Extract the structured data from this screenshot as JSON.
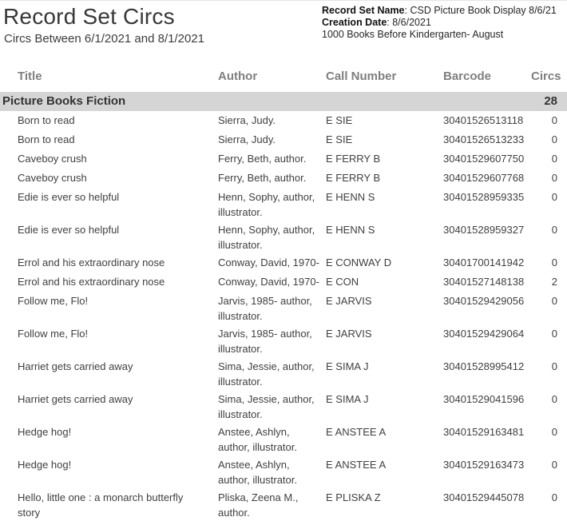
{
  "report": {
    "title": "Record Set Circs",
    "subtitle": "Circs Between 6/1/2021 and 8/1/2021"
  },
  "info": {
    "record_set": {
      "label": "Record Set Name",
      "sep": ": ",
      "value": "CSD Picture Book Display 8/6/21"
    },
    "creation_date": {
      "label": "Creation Date",
      "sep": ": ",
      "value": "8/6/2021"
    },
    "note": "1000 Books Before Kindergarten- August"
  },
  "table": {
    "columns": [
      "Title",
      "Author",
      "Call Number",
      "Barcode",
      "Circs"
    ],
    "section": {
      "title": "Picture Books Fiction",
      "circs": "28"
    },
    "rows": [
      {
        "title": "Born to read",
        "author": "Sierra, Judy.",
        "call_number": "E SIE",
        "barcode": "30401526513118",
        "circs": "0"
      },
      {
        "title": "Born to read",
        "author": "Sierra, Judy.",
        "call_number": "E SIE",
        "barcode": "30401526513233",
        "circs": "0"
      },
      {
        "title": "Caveboy crush",
        "author": "Ferry, Beth, author.",
        "call_number": "E FERRY B",
        "barcode": "30401529607750",
        "circs": "0"
      },
      {
        "title": "Caveboy crush",
        "author": "Ferry, Beth, author.",
        "call_number": "E FERRY B",
        "barcode": "30401529607768",
        "circs": "0"
      },
      {
        "title": "Edie is ever so helpful",
        "author": "Henn, Sophy, author, illustrator.",
        "call_number": "E HENN S",
        "barcode": "30401528959335",
        "circs": "0"
      },
      {
        "title": "Edie is ever so helpful",
        "author": "Henn, Sophy, author, illustrator.",
        "call_number": "E HENN S",
        "barcode": "30401528959327",
        "circs": "0"
      },
      {
        "title": "Errol and his extraordinary nose",
        "author": "Conway, David, 1970-",
        "call_number": "E CONWAY D",
        "barcode": "30401700141942",
        "circs": "0"
      },
      {
        "title": "Errol and his extraordinary nose",
        "author": "Conway, David, 1970-",
        "call_number": "E CON",
        "barcode": "30401527148138",
        "circs": "2"
      },
      {
        "title": "Follow me, Flo!",
        "author": "Jarvis, 1985- author, illustrator.",
        "call_number": "E JARVIS",
        "barcode": "30401529429056",
        "circs": "0"
      },
      {
        "title": "Follow me, Flo!",
        "author": "Jarvis, 1985- author, illustrator.",
        "call_number": "E JARVIS",
        "barcode": "30401529429064",
        "circs": "0"
      },
      {
        "title": "Harriet gets carried away",
        "author": "Sima, Jessie, author, illustrator.",
        "call_number": "E SIMA J",
        "barcode": "30401528995412",
        "circs": "0"
      },
      {
        "title": "Harriet gets carried away",
        "author": "Sima, Jessie, author, illustrator.",
        "call_number": "E SIMA J",
        "barcode": "30401529041596",
        "circs": "0"
      },
      {
        "title": "Hedge hog!",
        "author": "Anstee, Ashlyn, author, illustrator.",
        "call_number": "E ANSTEE A",
        "barcode": "30401529163481",
        "circs": "0"
      },
      {
        "title": "Hedge hog!",
        "author": "Anstee, Ashlyn, author, illustrator.",
        "call_number": "E ANSTEE A",
        "barcode": "30401529163473",
        "circs": "0"
      },
      {
        "title": "Hello, little one : a monarch butterfly story",
        "author": "Pliska, Zeena M., author.",
        "call_number": "E PLISKA Z",
        "barcode": "30401529445078",
        "circs": "0"
      }
    ]
  },
  "colors": {
    "section_bg": "#d5d5d5",
    "column_header_text": "#7f7f7f",
    "body_text": "#404040"
  }
}
